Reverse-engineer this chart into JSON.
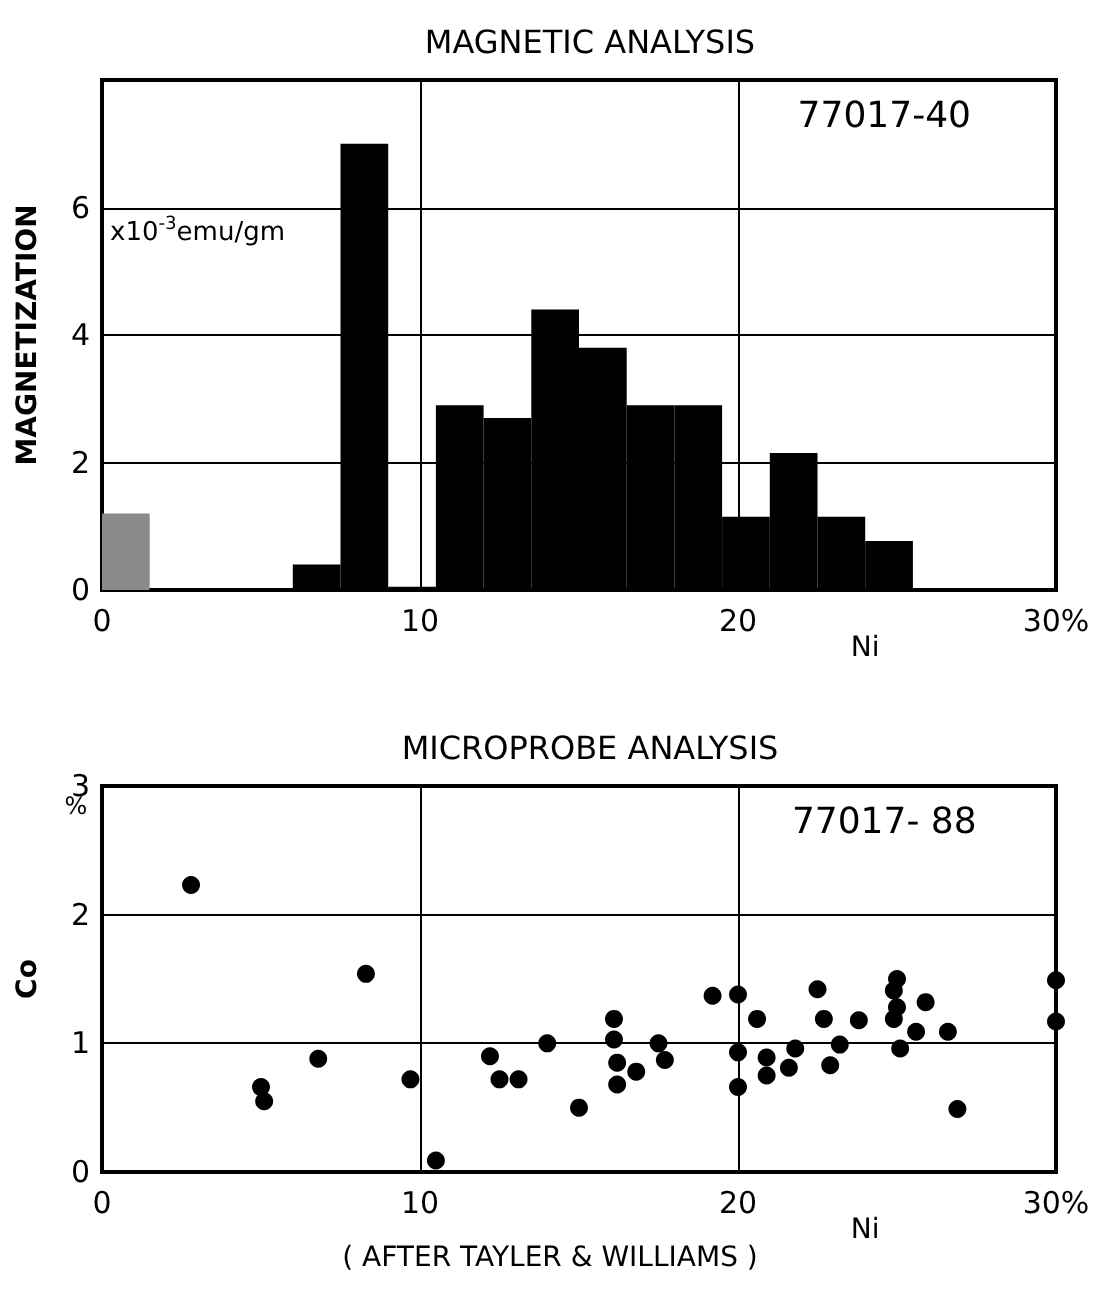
{
  "chart_data": [
    {
      "type": "histogram",
      "title": "MAGNETIC ANALYSIS",
      "ylabel": "MAGNETIZATION",
      "xlabel": "Ni",
      "annotations": [
        "77017-40",
        "x10$^{-3}$emu/gm"
      ],
      "bins": [
        0,
        1.5,
        3,
        4.5,
        6,
        7.5,
        9,
        10.5,
        12,
        13.5,
        15,
        16.5,
        18,
        19.5,
        21,
        22.5,
        24,
        25.5
      ],
      "values": [
        1.2,
        0,
        0,
        0,
        0.4,
        7.0,
        0.05,
        2.9,
        2.7,
        4.4,
        3.8,
        2.9,
        2.9,
        1.15,
        2.15,
        1.15,
        0.77
      ],
      "colors": [
        "#8a8a8a",
        "#000000",
        "#000000",
        "#000000",
        "#000000",
        "#000000",
        "#000000",
        "#000000",
        "#000000",
        "#000000",
        "#000000",
        "#000000",
        "#000000",
        "#000000",
        "#000000",
        "#000000",
        "#000000"
      ],
      "xlim": [
        0,
        30
      ],
      "xticks": [
        0,
        10,
        20,
        {
          "value": 30,
          "label": "30%"
        }
      ],
      "ylim": [
        0,
        8
      ],
      "yticks": [
        0,
        2,
        4,
        6
      ],
      "grid": true
    },
    {
      "type": "scatter",
      "title": "MICROPROBE ANALYSIS",
      "ylabel": "Co",
      "xlabel": "Ni",
      "annotations": [
        "77017- 88",
        "%",
        "( AFTER TAYLER & WILLIAMS )"
      ],
      "x": [
        2.8,
        5.0,
        5.1,
        6.8,
        8.3,
        9.7,
        10.5,
        12.2,
        12.5,
        13.1,
        14.0,
        15.0,
        16.1,
        16.1,
        16.2,
        16.2,
        16.8,
        17.5,
        17.7,
        19.2,
        20.0,
        20.0,
        20.0,
        20.6,
        20.9,
        20.9,
        21.6,
        21.8,
        22.5,
        22.7,
        22.9,
        23.2,
        23.8,
        25.0,
        24.9,
        25.0,
        24.9,
        25.1,
        25.6,
        25.9,
        26.6,
        26.9,
        30,
        30
      ],
      "values": [
        2.23,
        0.66,
        0.55,
        0.88,
        1.54,
        0.72,
        0.09,
        0.9,
        0.72,
        0.72,
        1.0,
        0.5,
        1.19,
        1.03,
        0.85,
        0.68,
        0.78,
        1.0,
        0.87,
        1.37,
        1.38,
        0.93,
        0.66,
        1.19,
        0.89,
        0.75,
        0.81,
        0.96,
        1.42,
        1.19,
        0.83,
        0.99,
        1.18,
        1.5,
        1.41,
        1.28,
        1.19,
        0.96,
        1.09,
        1.32,
        1.09,
        0.49,
        1.49,
        1.17
      ],
      "color": "#000000",
      "marker": "circle",
      "xlim": [
        0,
        30
      ],
      "xticks": [
        0,
        10,
        20,
        {
          "value": 30,
          "label": "30%"
        }
      ],
      "ylim": [
        0,
        3
      ],
      "yticks": [
        0,
        1,
        2,
        3
      ],
      "grid": true
    }
  ]
}
